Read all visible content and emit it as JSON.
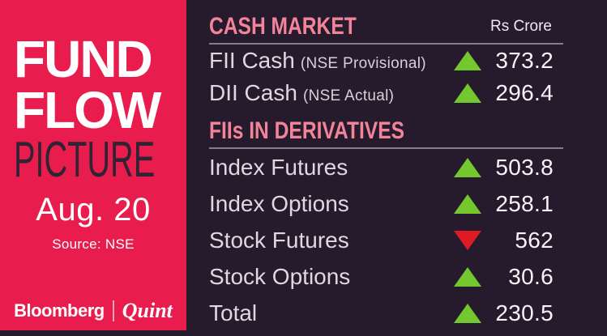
{
  "brand": {
    "title_line1": "FUND",
    "title_line2": "FLOW",
    "title_line3": "PICTURE",
    "date": "Aug. 20",
    "source": "Source: NSE",
    "logo_left": "Bloomberg",
    "logo_right": "Quint"
  },
  "units_label": "Rs Crore",
  "sections": [
    {
      "title": "CASH MARKET",
      "rows": [
        {
          "label": "FII Cash",
          "note": "(NSE Provisional)",
          "direction": "up",
          "value": "373.2"
        },
        {
          "label": "DII Cash",
          "note": "(NSE Actual)",
          "direction": "up",
          "value": "296.4"
        }
      ]
    },
    {
      "title": "FIIs IN DERIVATIVES",
      "rows": [
        {
          "label": "Index Futures",
          "direction": "up",
          "value": "503.8"
        },
        {
          "label": "Index Options",
          "direction": "up",
          "value": "258.1"
        },
        {
          "label": "Stock Futures",
          "direction": "down",
          "value": "562"
        },
        {
          "label": "Stock Options",
          "direction": "up",
          "value": "30.6"
        },
        {
          "label": "Total",
          "direction": "up",
          "value": "230.5"
        }
      ]
    }
  ],
  "colors": {
    "panel": "#E81C4D",
    "bg": "#251B2C",
    "header": "#F2849A",
    "up": "#74C82E",
    "down": "#DE1B24"
  },
  "chart_data": {
    "type": "table",
    "title": "Fund Flow Picture",
    "date": "Aug. 20",
    "source": "NSE",
    "units": "Rs Crore",
    "sections": [
      {
        "title": "CASH MARKET",
        "rows": [
          {
            "label": "FII Cash (NSE Provisional)",
            "direction": "up",
            "value": 373.2
          },
          {
            "label": "DII Cash (NSE Actual)",
            "direction": "up",
            "value": 296.4
          }
        ]
      },
      {
        "title": "FIIs IN DERIVATIVES",
        "rows": [
          {
            "label": "Index Futures",
            "direction": "up",
            "value": 503.8
          },
          {
            "label": "Index Options",
            "direction": "up",
            "value": 258.1
          },
          {
            "label": "Stock Futures",
            "direction": "down",
            "value": 562
          },
          {
            "label": "Stock Options",
            "direction": "up",
            "value": 30.6
          },
          {
            "label": "Total",
            "direction": "up",
            "value": 230.5
          }
        ]
      }
    ]
  }
}
